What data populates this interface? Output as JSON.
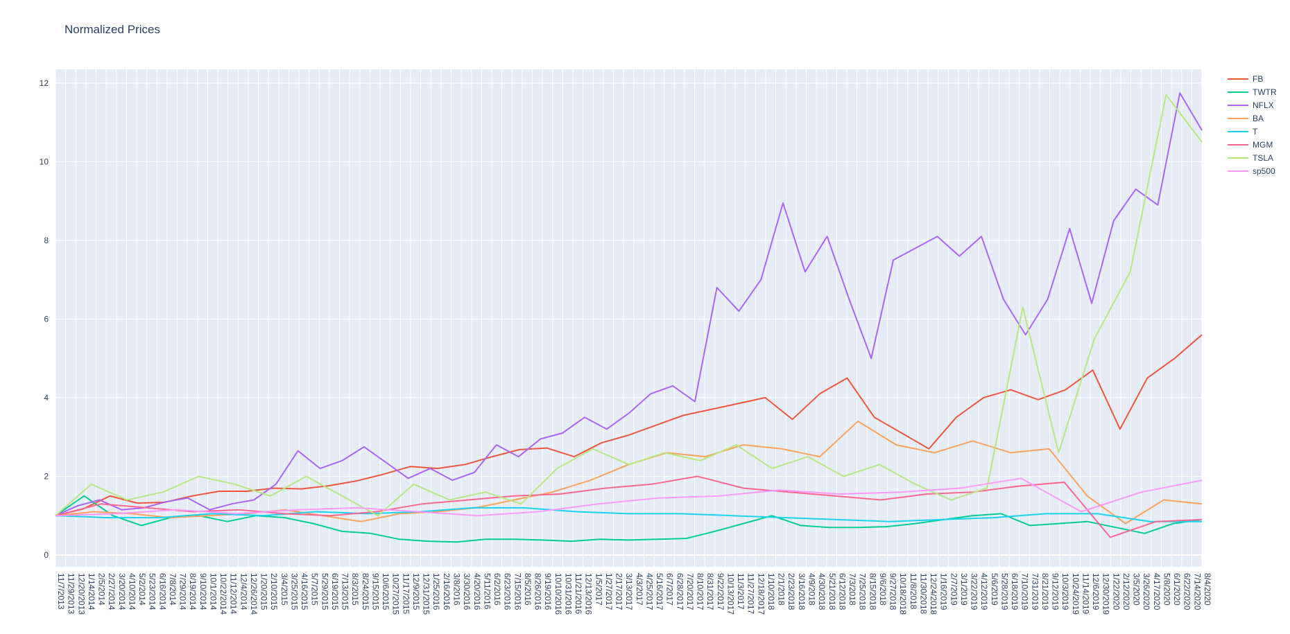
{
  "chart_data": {
    "type": "line",
    "title": "Normalized Prices",
    "xlabel": "",
    "ylabel": "",
    "ylim": [
      -0.3,
      12.35
    ],
    "y_ticks": [
      0,
      2,
      4,
      6,
      8,
      10,
      12
    ],
    "grid": true,
    "legend_position": "top-right",
    "x_tick_labels": [
      "11/7/2013",
      "11/29/2013",
      "12/20/2013",
      "1/14/2014",
      "2/5/2014",
      "2/27/2014",
      "3/20/2014",
      "4/10/2014",
      "5/2/2014",
      "5/23/2014",
      "6/16/2014",
      "7/8/2014",
      "7/29/2014",
      "8/19/2014",
      "9/10/2014",
      "10/1/2014",
      "10/22/2014",
      "11/12/2014",
      "12/4/2014",
      "12/26/2014",
      "1/20/2015",
      "2/10/2015",
      "3/4/2015",
      "3/25/2015",
      "4/16/2015",
      "5/7/2015",
      "5/29/2015",
      "6/19/2015",
      "7/13/2015",
      "8/3/2015",
      "8/24/2015",
      "9/15/2015",
      "10/6/2015",
      "10/27/2015",
      "11/17/2015",
      "12/9/2015",
      "12/31/2015",
      "1/25/2016",
      "2/16/2016",
      "3/8/2016",
      "3/30/2016",
      "4/20/2016",
      "5/11/2016",
      "6/2/2016",
      "6/23/2016",
      "7/15/2016",
      "8/5/2016",
      "8/26/2016",
      "9/19/2016",
      "10/10/2016",
      "10/31/2016",
      "11/21/2016",
      "12/13/2016",
      "1/5/2017",
      "1/27/2017",
      "2/17/2017",
      "3/13/2017",
      "4/3/2017",
      "4/25/2017",
      "5/16/2017",
      "6/7/2017",
      "6/28/2017",
      "7/20/2017",
      "8/10/2017",
      "8/31/2017",
      "9/22/2017",
      "10/13/2017",
      "11/3/2017",
      "11/27/2017",
      "12/18/2017",
      "1/10/2018",
      "2/1/2018",
      "2/23/2018",
      "3/16/2018",
      "4/9/2018",
      "4/30/2018",
      "5/21/2018",
      "6/12/2018",
      "7/3/2018",
      "7/25/2018",
      "8/15/2018",
      "9/6/2018",
      "9/27/2018",
      "10/18/2018",
      "11/8/2018",
      "11/30/2018",
      "12/24/2018",
      "1/16/2019",
      "2/7/2019",
      "3/1/2019",
      "3/22/2019",
      "4/12/2019",
      "5/6/2019",
      "5/28/2019",
      "6/18/2019",
      "7/10/2019",
      "7/31/2019",
      "8/21/2019",
      "9/12/2019",
      "10/3/2019",
      "10/24/2019",
      "11/14/2019",
      "12/6/2019",
      "12/30/2019",
      "1/22/2020",
      "2/12/2020",
      "3/5/2020",
      "3/26/2020",
      "4/17/2020",
      "5/8/2020",
      "6/1/2020",
      "6/22/2020",
      "7/14/2020",
      "8/4/2020"
    ],
    "series": [
      {
        "name": "FB",
        "color": "#EF553B",
        "values": [
          1,
          1.17,
          1.5,
          1.32,
          1.34,
          1.5,
          1.62,
          1.62,
          1.7,
          1.68,
          1.76,
          1.88,
          2.05,
          2.25,
          2.2,
          2.3,
          2.5,
          2.68,
          2.72,
          2.5,
          2.85,
          3.05,
          3.3,
          3.55,
          3.7,
          3.85,
          4.0,
          3.45,
          4.1,
          4.5,
          3.5,
          3.1,
          2.7,
          3.5,
          4.0,
          4.2,
          3.95,
          4.2,
          4.7,
          3.2,
          4.5,
          5.0,
          5.6
        ]
      },
      {
        "name": "TWTR",
        "color": "#00CC96",
        "values": [
          1,
          1.5,
          1.0,
          0.75,
          0.95,
          1.0,
          0.85,
          1.0,
          0.95,
          0.8,
          0.6,
          0.55,
          0.4,
          0.35,
          0.33,
          0.4,
          0.4,
          0.38,
          0.35,
          0.4,
          0.38,
          0.4,
          0.42,
          0.6,
          0.8,
          1.0,
          0.75,
          0.7,
          0.7,
          0.72,
          0.8,
          0.9,
          1.0,
          1.05,
          0.75,
          0.8,
          0.85,
          0.7,
          0.55,
          0.8,
          0.9
        ]
      },
      {
        "name": "NFLX",
        "color": "#AB63FA",
        "values": [
          1,
          1.25,
          1.4,
          1.15,
          1.2,
          1.35,
          1.45,
          1.15,
          1.3,
          1.4,
          1.8,
          2.65,
          2.2,
          2.4,
          2.75,
          2.35,
          1.95,
          2.2,
          1.9,
          2.1,
          2.8,
          2.5,
          2.95,
          3.1,
          3.5,
          3.2,
          3.6,
          4.1,
          4.3,
          3.9,
          6.8,
          6.2,
          7.0,
          8.95,
          7.2,
          8.1,
          6.5,
          5.0,
          7.5,
          7.8,
          8.1,
          7.6,
          8.1,
          6.5,
          5.6,
          6.5,
          8.3,
          6.4,
          8.5,
          9.3,
          8.9,
          11.75,
          10.8
        ]
      },
      {
        "name": "BA",
        "color": "#FFA15A",
        "values": [
          1,
          1.1,
          1.05,
          0.95,
          1.0,
          1.05,
          1.15,
          1.0,
          0.85,
          1.05,
          1.1,
          1.2,
          1.4,
          1.6,
          1.9,
          2.3,
          2.6,
          2.5,
          2.8,
          2.7,
          2.5,
          3.4,
          2.8,
          2.6,
          2.9,
          2.6,
          2.7,
          1.5,
          0.8,
          1.4,
          1.3
        ]
      },
      {
        "name": "T",
        "color": "#19D3F3",
        "values": [
          1,
          0.95,
          0.95,
          1.05,
          1.0,
          1.1,
          1.05,
          1.1,
          1.2,
          1.2,
          1.1,
          1.05,
          1.05,
          1.0,
          0.95,
          0.9,
          0.85,
          0.9,
          0.95,
          1.05,
          1.05,
          0.85,
          0.85
        ]
      },
      {
        "name": "MGM",
        "color": "#FF6692",
        "values": [
          1,
          1.3,
          1.2,
          1.1,
          1.15,
          1.05,
          1.0,
          1.1,
          1.3,
          1.4,
          1.5,
          1.55,
          1.7,
          1.8,
          2.0,
          1.7,
          1.6,
          1.5,
          1.4,
          1.55,
          1.6,
          1.75,
          1.85,
          0.45,
          0.85,
          0.9
        ]
      },
      {
        "name": "TSLA",
        "color": "#B6E880",
        "values": [
          1,
          1.8,
          1.4,
          1.6,
          2.0,
          1.8,
          1.5,
          2.0,
          1.5,
          1.0,
          1.8,
          1.4,
          1.6,
          1.3,
          2.2,
          2.7,
          2.3,
          2.6,
          2.4,
          2.8,
          2.2,
          2.5,
          2.0,
          2.3,
          1.8,
          1.4,
          1.7,
          6.3,
          2.6,
          5.5,
          7.2,
          11.7,
          10.5
        ]
      },
      {
        "name": "sp500",
        "color": "#FF97FF",
        "values": [
          1,
          1.05,
          1.15,
          1.05,
          1.15,
          1.2,
          1.1,
          1.0,
          1.1,
          1.3,
          1.45,
          1.5,
          1.65,
          1.55,
          1.6,
          1.7,
          1.95,
          1.1,
          1.6,
          1.9
        ]
      }
    ]
  }
}
